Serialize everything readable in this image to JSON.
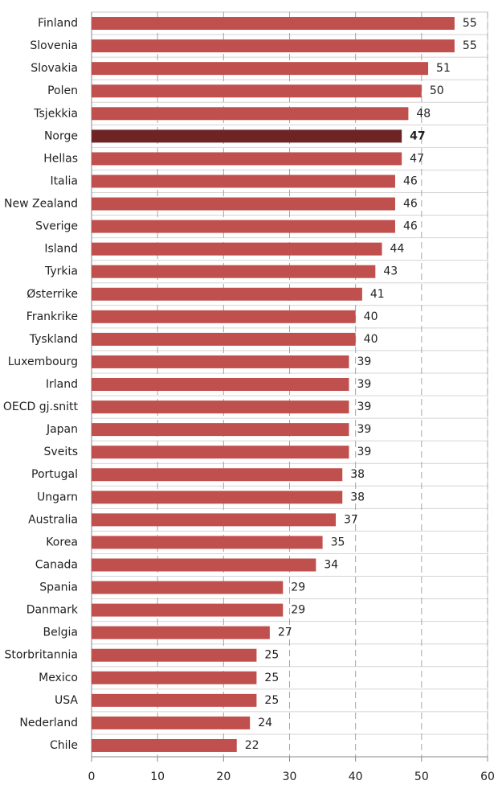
{
  "chart_data": {
    "type": "hbar",
    "categories": [
      "Finland",
      "Slovenia",
      "Slovakia",
      "Polen",
      "Tsjekkia",
      "Norge",
      "Hellas",
      "Italia",
      "New Zealand",
      "Sverige",
      "Island",
      "Tyrkia",
      "Østerrike",
      "Frankrike",
      "Tyskland",
      "Luxembourg",
      "Irland",
      "OECD gj.snitt",
      "Japan",
      "Sveits",
      "Portugal",
      "Ungarn",
      "Australia",
      "Korea",
      "Canada",
      "Spania",
      "Danmark",
      "Belgia",
      "Storbritannia",
      "Mexico",
      "USA",
      "Nederland",
      "Chile"
    ],
    "values": [
      55,
      55,
      51,
      50,
      48,
      47,
      47,
      46,
      46,
      46,
      44,
      43,
      41,
      40,
      40,
      39,
      39,
      39,
      39,
      39,
      38,
      38,
      37,
      35,
      34,
      29,
      29,
      27,
      25,
      25,
      25,
      24,
      22
    ],
    "color": "#c0504d",
    "bar_colors": [
      "#c0504d",
      "#c0504d",
      "#c0504d",
      "#c0504d",
      "#c0504d",
      "#6e2424",
      "#c0504d",
      "#c0504d",
      "#c0504d",
      "#c0504d",
      "#c0504d",
      "#c0504d",
      "#c0504d",
      "#c0504d",
      "#c0504d",
      "#c0504d",
      "#c0504d",
      "#c0504d",
      "#c0504d",
      "#c0504d",
      "#c0504d",
      "#c0504d",
      "#c0504d",
      "#c0504d",
      "#c0504d",
      "#c0504d",
      "#c0504d",
      "#c0504d",
      "#c0504d",
      "#c0504d",
      "#c0504d",
      "#c0504d",
      "#c0504d"
    ],
    "xlim": [
      0,
      60
    ],
    "xticks": [
      0,
      10,
      20,
      30,
      40,
      50,
      60
    ],
    "grid": true
  }
}
